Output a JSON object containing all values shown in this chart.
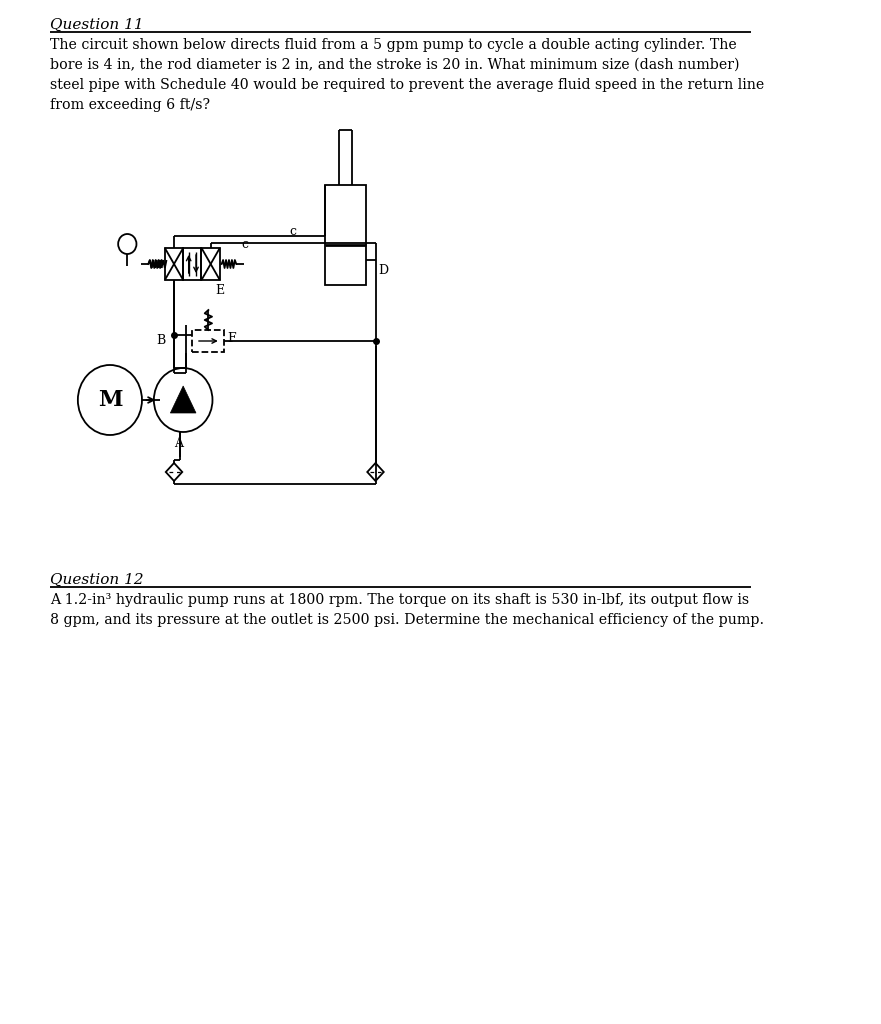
{
  "title_q11": "Question 11",
  "title_q12": "Question 12",
  "text_q11": "The circuit shown below directs fluid from a 5 gpm pump to cycle a double acting cylinder. The\nbore is 4 in, the rod diameter is 2 in, and the stroke is 20 in. What minimum size (dash number)\nsteel pipe with Schedule 40 would be required to prevent the average fluid speed in the return line\nfrom exceeding 6 ft/s?",
  "text_q12": "A 1.2-in³ hydraulic pump runs at 1800 rpm. The torque on its shaft is 530 in-lbf, its output flow is\n8 gpm, and its pressure at the outlet is 2500 psi. Determine the mechanical efficiency of the pump.",
  "bg_color": "#ffffff",
  "line_color": "#000000"
}
